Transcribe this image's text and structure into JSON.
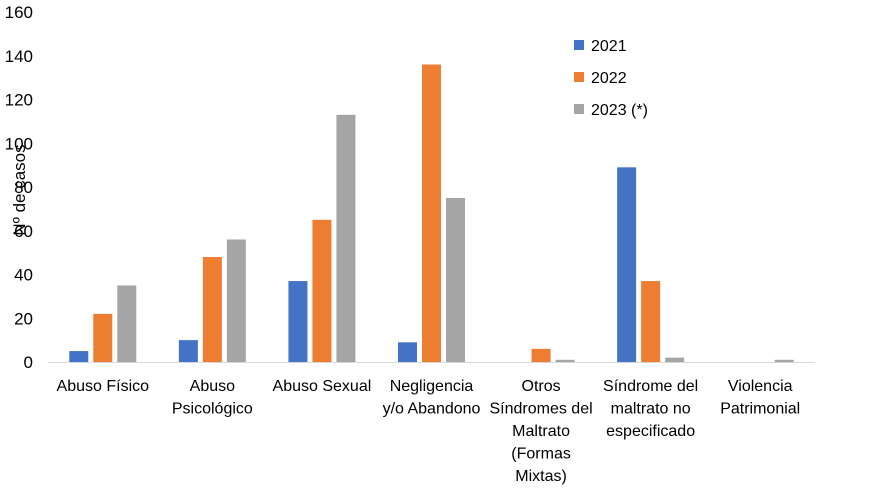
{
  "chart_data": {
    "type": "bar",
    "ylabel": "Nº de casos",
    "ylim": [
      0,
      160
    ],
    "yticks": [
      0,
      20,
      40,
      60,
      80,
      100,
      120,
      140,
      160
    ],
    "grid": false,
    "legend_position": "top-right",
    "categories": [
      [
        "Abuso Físico"
      ],
      [
        "Abuso",
        "Psicológico"
      ],
      [
        "Abuso Sexual"
      ],
      [
        "Negligencia",
        "y/o Abandono"
      ],
      [
        "Otros",
        "Síndromes del",
        "Maltrato",
        "(Formas",
        "Mixtas)"
      ],
      [
        "Síndrome del",
        "maltrato no",
        "especificado"
      ],
      [
        "Violencia",
        "Patrimonial"
      ]
    ],
    "series": [
      {
        "name": "2021",
        "color": "#4472C4",
        "values": [
          5,
          10,
          37,
          9,
          0,
          89,
          0
        ]
      },
      {
        "name": "2022",
        "color": "#ED7D31",
        "values": [
          22,
          48,
          65,
          136,
          6,
          37,
          0
        ]
      },
      {
        "name": "2023 (*)",
        "color": "#A5A5A5",
        "values": [
          35,
          56,
          113,
          75,
          1,
          2,
          1
        ]
      }
    ]
  }
}
